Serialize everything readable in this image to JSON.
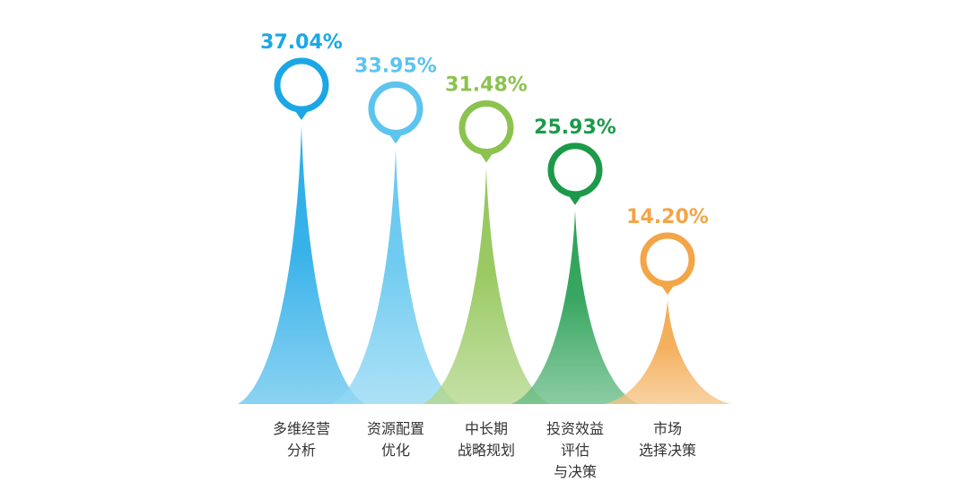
{
  "chart_data": {
    "type": "bar",
    "categories": [
      "多维经营分析",
      "资源配置优化",
      "中长期战略规划",
      "投资效益评估与决策",
      "市场选择决策"
    ],
    "category_lines": [
      [
        "多维经营",
        "分析"
      ],
      [
        "资源配置",
        "优化"
      ],
      [
        "中长期",
        "战略规划"
      ],
      [
        "投资效益",
        "评估",
        "与决策"
      ],
      [
        "市场",
        "选择决策"
      ]
    ],
    "values": [
      37.04,
      33.95,
      31.48,
      25.93,
      14.2
    ],
    "value_labels": [
      "37.04%",
      "33.95%",
      "31.48%",
      "25.93%",
      "14.20%"
    ],
    "colors": [
      "#1ba7e6",
      "#5cc4ee",
      "#8cc24e",
      "#1c9a4a",
      "#f3a547"
    ],
    "ylim": [
      0,
      37.04
    ]
  }
}
